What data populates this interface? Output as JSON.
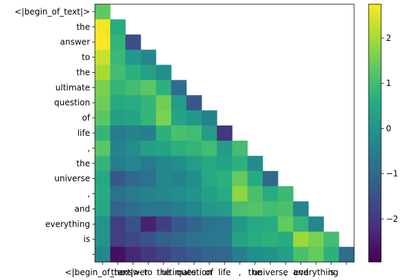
{
  "chart_data": {
    "type": "heatmap",
    "title": "",
    "xlabel": "",
    "ylabel": "",
    "tokens": [
      "<|begin_of_text|>",
      "the",
      " answer",
      " to",
      " the",
      " ultimate",
      " question",
      " of",
      " life",
      ",",
      " the",
      " universe",
      ",",
      " and",
      " everything",
      " is",
      ""
    ],
    "x_tick_labels": [
      "<|begin_of_text|>",
      "the",
      " answer",
      " to",
      " the",
      " ultimate",
      " question",
      " of",
      " life",
      ",",
      " the",
      " universe",
      ",",
      " and",
      " everything",
      " is",
      ""
    ],
    "y_tick_labels": [
      "<|begin_of_text|>",
      "the",
      " answer",
      " to",
      " the",
      " ultimate",
      " question",
      " of",
      " life",
      ",",
      " the",
      " universe",
      ",",
      " and",
      " everything",
      " is",
      ""
    ],
    "mask": "upper triangle (above diagonal) blank",
    "colormap": "viridis",
    "vmin": -2.95,
    "vmax": 2.75,
    "colorbar_ticks": [
      2,
      1,
      0,
      -1,
      -2
    ],
    "values": [
      [
        1.35
      ],
      [
        2.7,
        0.6
      ],
      [
        2.75,
        0.8,
        -1.6
      ],
      [
        2.3,
        0.9,
        0.1,
        -0.3
      ],
      [
        2.0,
        1.0,
        0.7,
        0.3,
        -0.1
      ],
      [
        1.6,
        0.8,
        1.0,
        1.3,
        0.7,
        -0.9
      ],
      [
        1.5,
        0.5,
        0.6,
        0.8,
        1.5,
        0.2,
        -1.4
      ],
      [
        1.3,
        0.3,
        0.4,
        0.8,
        1.6,
        0.4,
        0.1,
        -0.4
      ],
      [
        0.8,
        -0.6,
        -0.4,
        -0.5,
        0.7,
        1.1,
        1.0,
        0.2,
        -2.0
      ],
      [
        1.3,
        -0.4,
        -0.2,
        0.3,
        0.4,
        0.7,
        0.8,
        1.0,
        0.2,
        1.0
      ],
      [
        0.8,
        -0.5,
        -0.3,
        -0.6,
        -0.3,
        -0.1,
        0.2,
        0.5,
        0.4,
        0.7,
        -0.2
      ],
      [
        0.5,
        -1.4,
        -1.0,
        -0.8,
        -0.3,
        -0.4,
        -0.1,
        0.5,
        0.7,
        1.4,
        0.6,
        -1.0
      ],
      [
        0.6,
        -0.8,
        -0.6,
        -0.4,
        -0.3,
        -0.2,
        0.0,
        0.3,
        0.6,
        1.8,
        1.1,
        0.6,
        0.9
      ],
      [
        0.5,
        -1.1,
        -0.9,
        -0.7,
        -0.7,
        -0.5,
        -0.3,
        0.1,
        0.2,
        1.1,
        1.2,
        1.0,
        1.1,
        -0.3
      ],
      [
        0.0,
        -1.9,
        -1.5,
        -2.4,
        -1.9,
        -1.4,
        -1.1,
        -0.8,
        -0.7,
        0.1,
        0.5,
        0.6,
        1.4,
        0.8,
        -0.3
      ],
      [
        0.0,
        -1.9,
        -1.7,
        -1.5,
        -1.2,
        -1.0,
        -0.8,
        -0.7,
        -0.6,
        0.4,
        0.6,
        0.7,
        0.6,
        1.9,
        1.6,
        1.0
      ],
      [
        -0.3,
        -2.7,
        -2.3,
        -2.0,
        -1.8,
        -1.5,
        -1.3,
        -1.1,
        -1.0,
        -0.5,
        -0.1,
        0.0,
        0.3,
        1.1,
        1.4,
        0.7,
        -0.9
      ]
    ]
  }
}
